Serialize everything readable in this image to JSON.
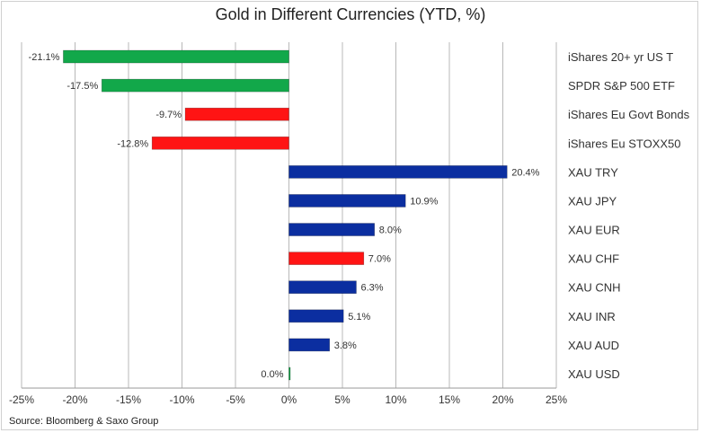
{
  "chart_data": {
    "type": "bar",
    "orientation": "horizontal",
    "title": "Gold in Different Currencies (YTD, %)",
    "source": "Source: Bloomberg & Saxo Group",
    "xlim": [
      -25,
      25
    ],
    "x_ticks": [
      -25,
      -20,
      -15,
      -10,
      -5,
      0,
      5,
      10,
      15,
      20,
      25
    ],
    "x_tick_labels": [
      "-25%",
      "-20%",
      "-15%",
      "-10%",
      "-5%",
      "0%",
      "5%",
      "10%",
      "15%",
      "20%",
      "25%"
    ],
    "grid": true,
    "categories": [
      "iShares 20+ yr US T",
      "SPDR S&P 500 ETF",
      "iShares Eu Govt Bonds",
      "iShares Eu STOXX50",
      "XAU TRY",
      "XAU JPY",
      "XAU EUR",
      "XAU CHF",
      "XAU CNH",
      "XAU INR",
      "XAU AUD",
      "XAU USD"
    ],
    "values": [
      -21.1,
      -17.5,
      -9.7,
      -12.8,
      20.4,
      10.9,
      8.0,
      7.0,
      6.3,
      5.1,
      3.8,
      0.0
    ],
    "value_labels": [
      "-21.1%",
      "-17.5%",
      "-9.7%",
      "-12.8%",
      "20.4%",
      "10.9%",
      "8.0%",
      "7.0%",
      "6.3%",
      "5.1%",
      "3.8%",
      "0.0%"
    ],
    "colors": [
      "#12a84a",
      "#12a84a",
      "#ff1414",
      "#ff1414",
      "#0b2ea0",
      "#0b2ea0",
      "#0b2ea0",
      "#ff1414",
      "#0b2ea0",
      "#0b2ea0",
      "#0b2ea0",
      "#12a84a"
    ]
  }
}
